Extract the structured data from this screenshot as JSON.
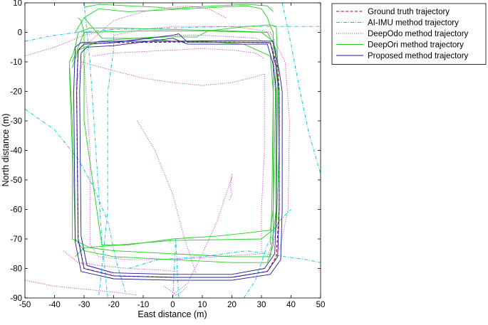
{
  "chart_data": {
    "type": "line",
    "title": "",
    "xlabel": "East distance (m)",
    "ylabel": "North distance (m)",
    "xlim": [
      -50,
      50
    ],
    "ylim": [
      -90,
      10
    ],
    "xticks": [
      -50,
      -40,
      -30,
      -20,
      -10,
      0,
      10,
      20,
      30,
      40,
      50
    ],
    "yticks": [
      10,
      0,
      -10,
      -20,
      -30,
      -40,
      -50,
      -60,
      -70,
      -80,
      -90
    ],
    "grid": false,
    "legend_position": "outside-right-top",
    "series": [
      {
        "name": "Ground truth trajectory",
        "color": "#c00000",
        "dash": "dashed",
        "x": [
          -32,
          -32.5,
          -32,
          -30,
          -20,
          0,
          20,
          32,
          35,
          36,
          36,
          35.5,
          33,
          20,
          0,
          -20,
          -30,
          -32
        ],
        "y": [
          -6,
          -20,
          -70,
          -80,
          -82.5,
          -83,
          -83,
          -81,
          -76,
          -60,
          -20,
          -12,
          -3.5,
          -3.3,
          -3.3,
          -3.5,
          -4,
          -6
        ]
      },
      {
        "name": "AI-IMU method trajectory",
        "color": "#00c8e6",
        "dash": "dashdot",
        "x": [
          -50,
          -40,
          -32,
          -20,
          -5,
          10,
          25,
          38,
          50
        ],
        "y": [
          -3,
          -1,
          0,
          1,
          1.3,
          1.8,
          2,
          2,
          2
        ]
      },
      {
        "name": "AI-IMU method trajectory",
        "color": "#00c8e6",
        "dash": "dashdot",
        "x": [
          -50,
          -40,
          -32,
          -27,
          -22,
          -19,
          -16
        ],
        "y": [
          -26,
          -33,
          -43,
          -52,
          -64,
          -78,
          -88
        ]
      },
      {
        "name": "AI-IMU method trajectory",
        "color": "#00c8e6",
        "dash": "dashdot",
        "x": [
          -25,
          -24,
          -22,
          -22,
          -20,
          -20
        ],
        "y": [
          -89,
          -80,
          -60,
          -20,
          -6,
          0
        ]
      },
      {
        "name": "AI-IMU method trajectory",
        "color": "#00c8e6",
        "dash": "dashdot",
        "x": [
          -30,
          -28,
          -26,
          -24,
          -22
        ],
        "y": [
          10,
          -10,
          -40,
          -70,
          -90
        ]
      },
      {
        "name": "AI-IMU method trajectory",
        "color": "#00c8e6",
        "dash": "dashdot",
        "x": [
          37,
          40,
          43,
          46,
          50
        ],
        "y": [
          10,
          -4,
          -20,
          -34,
          -48
        ]
      },
      {
        "name": "AI-IMU method trajectory",
        "color": "#00c8e6",
        "dash": "dashdot",
        "x": [
          -15,
          -5,
          10,
          25,
          38,
          45,
          50
        ],
        "y": [
          -80,
          -77,
          -76,
          -74,
          -76,
          -77,
          -78
        ]
      },
      {
        "name": "AI-IMU method trajectory",
        "color": "#00c8e6",
        "dash": "dashdot",
        "x": [
          24,
          28,
          32,
          36,
          40
        ],
        "y": [
          -90,
          -84,
          -72,
          -64,
          -60
        ]
      },
      {
        "name": "AI-IMU method trajectory",
        "color": "#00c8e6",
        "dash": "dashdot",
        "x": [
          0,
          0.5,
          1,
          1.5,
          2
        ],
        "y": [
          -90,
          -80,
          -70,
          -80,
          -90
        ]
      },
      {
        "name": "DeepOdo method trajectory",
        "color": "#d040c0",
        "dash": "dotted",
        "x": [
          -33,
          -28,
          -20,
          -10,
          0,
          5,
          12,
          18
        ],
        "y": [
          -18,
          -3,
          4,
          7,
          8.5,
          9,
          8,
          5
        ]
      },
      {
        "name": "DeepOdo method trajectory",
        "color": "#d040c0",
        "dash": "dotted",
        "x": [
          -50,
          -40,
          -30,
          -20
        ],
        "y": [
          -8,
          -5,
          -1,
          1
        ]
      },
      {
        "name": "DeepOdo method trajectory",
        "color": "#d040c0",
        "dash": "dotted",
        "x": [
          -30,
          -28,
          -28,
          -25,
          -15,
          0,
          15,
          30,
          30,
          31,
          31
        ],
        "y": [
          -10,
          -40,
          -72,
          -76,
          -77,
          -77,
          -76,
          -75,
          -60,
          -40,
          -14
        ]
      },
      {
        "name": "DeepOdo method trajectory",
        "color": "#d040c0",
        "dash": "dotted",
        "x": [
          -31,
          -20,
          -10,
          0,
          10,
          20,
          28,
          31
        ],
        "y": [
          -10,
          -13,
          -15.5,
          -17,
          -18,
          -17,
          -15,
          -14
        ]
      },
      {
        "name": "DeepOdo method trajectory",
        "color": "#d040c0",
        "dash": "dotted",
        "x": [
          -27,
          -20,
          -10,
          0,
          10,
          20,
          28,
          31
        ],
        "y": [
          -8,
          -7,
          -6.5,
          -6,
          -5.5,
          -6,
          -7,
          -9
        ]
      },
      {
        "name": "DeepOdo method trajectory",
        "color": "#d040c0",
        "dash": "dotted",
        "x": [
          -50,
          -40,
          -30,
          -20,
          -12
        ],
        "y": [
          -84,
          -86,
          -87,
          -88,
          -89
        ]
      },
      {
        "name": "DeepOdo method trajectory",
        "color": "#d040c0",
        "dash": "dotted",
        "x": [
          -37,
          -32,
          -25,
          -20
        ],
        "y": [
          -74,
          -78,
          -80,
          -82
        ]
      },
      {
        "name": "DeepOdo method trajectory",
        "color": "#d040c0",
        "dash": "dotted",
        "x": [
          0,
          5,
          10,
          15,
          18,
          20
        ],
        "y": [
          -89,
          -85,
          -75,
          -64,
          -55,
          -49
        ]
      },
      {
        "name": "DeepOdo method trajectory",
        "color": "#d040c0",
        "dash": "dotted",
        "x": [
          20,
          19.5,
          20,
          19
        ],
        "y": [
          -48,
          -52,
          -55,
          -57
        ]
      },
      {
        "name": "DeepOdo method trajectory",
        "color": "#d040c0",
        "dash": "dotted",
        "x": [
          -12,
          -6,
          0,
          4,
          8
        ],
        "y": [
          -30,
          -40,
          -55,
          -70,
          -82
        ]
      },
      {
        "name": "DeepOdo method trajectory",
        "color": "#d040c0",
        "dash": "dotted",
        "x": [
          -3,
          0,
          1,
          3,
          5
        ],
        "y": [
          -86,
          -88,
          -89,
          -88,
          -86
        ]
      },
      {
        "name": "DeepOdo method trajectory",
        "color": "#d040c0",
        "dash": "dotted",
        "x": [
          -31,
          -25,
          -15,
          -5,
          2
        ],
        "y": [
          -78,
          -79,
          -80,
          -80.5,
          -81
        ]
      },
      {
        "name": "DeepOdo method trajectory",
        "color": "#d040c0",
        "dash": "dotted",
        "x": [
          -20,
          -10,
          0,
          10,
          20,
          28,
          33,
          38,
          39.5,
          39,
          36
        ],
        "y": [
          -1,
          1,
          2,
          2,
          2,
          1,
          0,
          -10,
          -30,
          -60,
          -74
        ]
      },
      {
        "name": "DeepOdo method trajectory",
        "color": "#d040c0",
        "dash": "dotted",
        "x": [
          -22,
          -10,
          0,
          10,
          20,
          28,
          33
        ],
        "y": [
          -3.5,
          -2,
          -1,
          -1,
          -1.5,
          -2,
          -4
        ]
      },
      {
        "name": "DeepOdo method trajectory",
        "color": "#d040c0",
        "dash": "dotted",
        "x": [
          34,
          35,
          35,
          32,
          20,
          0
        ],
        "y": [
          -6,
          -30,
          -68,
          -76,
          -76,
          -75
        ]
      },
      {
        "name": "DeepOri method trajectory",
        "color": "#22cc22",
        "dash": "solid",
        "x": [
          -35,
          -34,
          -33,
          -30,
          -20,
          0,
          20,
          32,
          34,
          34,
          35,
          32,
          20,
          0,
          -20,
          -28,
          -32,
          -33,
          -34,
          -35
        ],
        "y": [
          -10,
          -30,
          -70,
          -74,
          -76,
          -77,
          -78,
          -78,
          -72,
          -60,
          -6,
          0,
          0.5,
          1,
          1.5,
          1.5,
          0,
          -5,
          -8,
          -10
        ]
      },
      {
        "name": "DeepOri method trajectory",
        "color": "#22cc22",
        "dash": "solid",
        "x": [
          -34,
          -32,
          -25,
          -20,
          -10,
          0,
          8,
          12,
          25,
          33,
          35,
          35.5,
          36,
          35,
          30,
          0,
          -30,
          -33
        ],
        "y": [
          -12,
          -6,
          -3,
          -2.5,
          -1.8,
          -1.5,
          -1.6,
          0.5,
          2,
          2.5,
          2,
          -10,
          -40,
          -66,
          -70,
          -70.5,
          -73,
          -76
        ]
      },
      {
        "name": "DeepOri method trajectory",
        "color": "#22cc22",
        "dash": "solid",
        "x": [
          -35,
          -34,
          -34,
          -28,
          -20,
          0,
          20,
          33,
          35,
          35.5,
          35,
          34,
          30,
          10,
          -10,
          -30,
          -34
        ],
        "y": [
          -12,
          -40,
          -70,
          -73,
          -74,
          -75,
          -76,
          -76,
          -60,
          -20,
          -10,
          -3,
          0,
          0.5,
          0.5,
          0,
          -10
        ]
      },
      {
        "name": "DeepOri method trajectory",
        "color": "#22cc22",
        "dash": "solid",
        "x": [
          -32,
          -31,
          -30,
          -30,
          -24,
          -15,
          0,
          15,
          25,
          33,
          34,
          34,
          33,
          24,
          10,
          0,
          -10,
          -24,
          -30
        ],
        "y": [
          5,
          4,
          0,
          -30,
          -72,
          -72,
          -70,
          -69,
          -68,
          -67,
          -60,
          -20,
          -8,
          -4,
          -3,
          -3,
          -2,
          -2,
          5
        ]
      },
      {
        "name": "DeepOri method trajectory",
        "color": "#22cc22",
        "dash": "solid",
        "x": [
          -33,
          -30,
          -25,
          -20,
          -15,
          -5,
          5,
          15,
          25,
          30,
          32,
          33,
          34,
          34,
          33.5,
          33
        ],
        "y": [
          0,
          5,
          8,
          7.5,
          7,
          7.5,
          8,
          8.5,
          9,
          8,
          5,
          2,
          0,
          -20,
          -60,
          -72
        ]
      },
      {
        "name": "DeepOri method trajectory",
        "color": "#22cc22",
        "dash": "solid",
        "x": [
          -30,
          -25,
          -15,
          -5,
          0,
          5,
          15,
          25,
          32,
          34
        ],
        "y": [
          8.5,
          9.5,
          9,
          8.5,
          8,
          8.5,
          9,
          9.5,
          9,
          7
        ]
      },
      {
        "name": "Proposed method trajectory",
        "color": "#1a1aa0",
        "dash": "solid",
        "x": [
          -32,
          -32.5,
          -32,
          -30,
          -20,
          0,
          20,
          32,
          35.5,
          36,
          36,
          35,
          33,
          20,
          5,
          2,
          0,
          -20,
          -30,
          -32
        ],
        "y": [
          -6,
          -20,
          -70,
          -80,
          -82.5,
          -83,
          -83,
          -81,
          -76,
          -60,
          -20,
          -12,
          -3.5,
          -3.3,
          -3.3,
          -0.5,
          -1,
          -3.5,
          -4,
          -6
        ]
      },
      {
        "name": "Proposed method trajectory",
        "color": "#1a1aa0",
        "dash": "solid",
        "x": [
          -31,
          -31.5,
          -31,
          -29,
          -20,
          0,
          20,
          31,
          34.5,
          35,
          35,
          34,
          32,
          20,
          5,
          0,
          -20,
          -29,
          -31
        ],
        "y": [
          -7,
          -20,
          -69,
          -79,
          -81.5,
          -82,
          -82,
          -80,
          -75,
          -60,
          -20,
          -11,
          -4,
          -4,
          -4,
          -2,
          -4.5,
          -5,
          -7
        ]
      },
      {
        "name": "Proposed method trajectory",
        "color": "#1a1aa0",
        "dash": "solid",
        "x": [
          -33,
          -33.5,
          -33,
          -31,
          -20,
          0,
          20,
          33,
          36.5,
          37,
          37,
          36,
          34,
          20,
          0,
          -20,
          -31,
          -33
        ],
        "y": [
          -5,
          -20,
          -71,
          -81,
          -83.5,
          -84,
          -84,
          -82,
          -77,
          -60,
          -20,
          -13,
          -3,
          -2.8,
          -3,
          -3,
          -3.5,
          -5
        ]
      }
    ],
    "legend": [
      {
        "label": "Ground truth trajectory",
        "color": "#c00000",
        "dash": "dashed"
      },
      {
        "label": "AI-IMU method trajectory",
        "color": "#00c8e6",
        "dash": "dashdot"
      },
      {
        "label": "DeepOdo method trajectory",
        "color": "#d040c0",
        "dash": "dotted"
      },
      {
        "label": "DeepOri method trajectory",
        "color": "#22cc22",
        "dash": "solid"
      },
      {
        "label": "Proposed method trajectory",
        "color": "#1a1aa0",
        "dash": "solid"
      }
    ]
  }
}
